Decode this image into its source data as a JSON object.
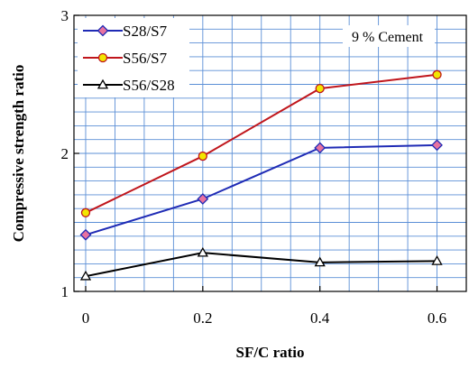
{
  "chart_data": {
    "type": "line",
    "title": "",
    "annotation": "9 % Cement",
    "xlabel": "SF/C ratio",
    "ylabel": "Compressive strength ratio",
    "xlim": [
      -0.02,
      0.65
    ],
    "ylim": [
      1,
      3
    ],
    "x": [
      0,
      0.2,
      0.4,
      0.6
    ],
    "x_tick_labels": [
      "0",
      "0.2",
      "0.4",
      "0.6"
    ],
    "y_tick_labels": [
      "1",
      "2",
      "3"
    ],
    "grid": true,
    "legend_position": "top-left",
    "series": [
      {
        "name": "S28/S7",
        "values": [
          1.41,
          1.67,
          2.04,
          2.06
        ],
        "color": "#1f2bb5",
        "marker": "diamond",
        "marker_fill": "#e872a0"
      },
      {
        "name": "S56/S7",
        "values": [
          1.57,
          1.98,
          2.47,
          2.57
        ],
        "color": "#c0161c",
        "marker": "circle",
        "marker_fill": "#f2e600"
      },
      {
        "name": "S56/S28",
        "values": [
          1.11,
          1.28,
          1.21,
          1.22
        ],
        "color": "#000000",
        "marker": "triangle",
        "marker_fill": "#ffffff"
      }
    ]
  }
}
